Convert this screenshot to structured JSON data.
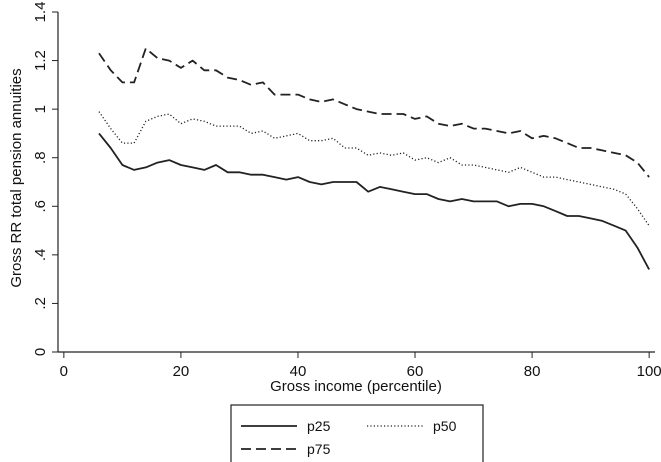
{
  "chart_data": {
    "type": "line",
    "title": "",
    "xlabel": "Gross income (percentile)",
    "ylabel": "Gross RR total pension annuities",
    "xlim": [
      -1,
      101
    ],
    "ylim": [
      0,
      1.4
    ],
    "x_ticks": [
      0,
      20,
      40,
      60,
      80,
      100
    ],
    "y_ticks": [
      0,
      0.2,
      0.4,
      0.6,
      0.8,
      1,
      1.2,
      1.4
    ],
    "x_tick_labels": [
      "0",
      "20",
      "40",
      "60",
      "80",
      "100"
    ],
    "y_tick_labels": [
      "0",
      ".2",
      ".4",
      ".6",
      ".8",
      "1",
      "1.2",
      "1.4"
    ],
    "grid": false,
    "legend_position": "bottom",
    "series": [
      {
        "name": "p25",
        "style": "solid",
        "x": [
          6,
          8,
          10,
          12,
          14,
          16,
          18,
          20,
          22,
          24,
          26,
          28,
          30,
          32,
          34,
          36,
          38,
          40,
          42,
          44,
          46,
          48,
          50,
          52,
          54,
          56,
          58,
          60,
          62,
          64,
          66,
          68,
          70,
          72,
          74,
          76,
          78,
          80,
          82,
          84,
          86,
          88,
          90,
          92,
          94,
          96,
          98,
          100
        ],
        "y": [
          0.9,
          0.84,
          0.77,
          0.75,
          0.76,
          0.78,
          0.79,
          0.77,
          0.76,
          0.75,
          0.77,
          0.74,
          0.74,
          0.73,
          0.73,
          0.72,
          0.71,
          0.72,
          0.7,
          0.69,
          0.7,
          0.7,
          0.7,
          0.66,
          0.68,
          0.67,
          0.66,
          0.65,
          0.65,
          0.63,
          0.62,
          0.63,
          0.62,
          0.62,
          0.62,
          0.6,
          0.61,
          0.61,
          0.6,
          0.58,
          0.56,
          0.56,
          0.55,
          0.54,
          0.52,
          0.5,
          0.43,
          0.34
        ]
      },
      {
        "name": "p50",
        "style": "dotted",
        "x": [
          6,
          8,
          10,
          12,
          14,
          16,
          18,
          20,
          22,
          24,
          26,
          28,
          30,
          32,
          34,
          36,
          38,
          40,
          42,
          44,
          46,
          48,
          50,
          52,
          54,
          56,
          58,
          60,
          62,
          64,
          66,
          68,
          70,
          72,
          74,
          76,
          78,
          80,
          82,
          84,
          86,
          88,
          90,
          92,
          94,
          96,
          98,
          100
        ],
        "y": [
          0.99,
          0.92,
          0.86,
          0.86,
          0.95,
          0.97,
          0.98,
          0.94,
          0.96,
          0.95,
          0.93,
          0.93,
          0.93,
          0.9,
          0.91,
          0.88,
          0.89,
          0.9,
          0.87,
          0.87,
          0.88,
          0.84,
          0.84,
          0.81,
          0.82,
          0.81,
          0.82,
          0.79,
          0.8,
          0.78,
          0.8,
          0.77,
          0.77,
          0.76,
          0.75,
          0.74,
          0.76,
          0.74,
          0.72,
          0.72,
          0.71,
          0.7,
          0.69,
          0.68,
          0.67,
          0.65,
          0.59,
          0.52
        ]
      },
      {
        "name": "p75",
        "style": "dashed",
        "x": [
          6,
          8,
          10,
          12,
          14,
          16,
          18,
          20,
          22,
          24,
          26,
          28,
          30,
          32,
          34,
          36,
          38,
          40,
          42,
          44,
          46,
          48,
          50,
          52,
          54,
          56,
          58,
          60,
          62,
          64,
          66,
          68,
          70,
          72,
          74,
          76,
          78,
          80,
          82,
          84,
          86,
          88,
          90,
          92,
          94,
          96,
          98,
          100
        ],
        "y": [
          1.23,
          1.16,
          1.11,
          1.11,
          1.25,
          1.21,
          1.2,
          1.17,
          1.2,
          1.16,
          1.16,
          1.13,
          1.12,
          1.1,
          1.11,
          1.06,
          1.06,
          1.06,
          1.04,
          1.03,
          1.04,
          1.02,
          1.0,
          0.99,
          0.98,
          0.98,
          0.98,
          0.96,
          0.97,
          0.94,
          0.93,
          0.94,
          0.92,
          0.92,
          0.91,
          0.9,
          0.91,
          0.88,
          0.89,
          0.88,
          0.86,
          0.84,
          0.84,
          0.83,
          0.82,
          0.81,
          0.78,
          0.72
        ]
      }
    ]
  }
}
